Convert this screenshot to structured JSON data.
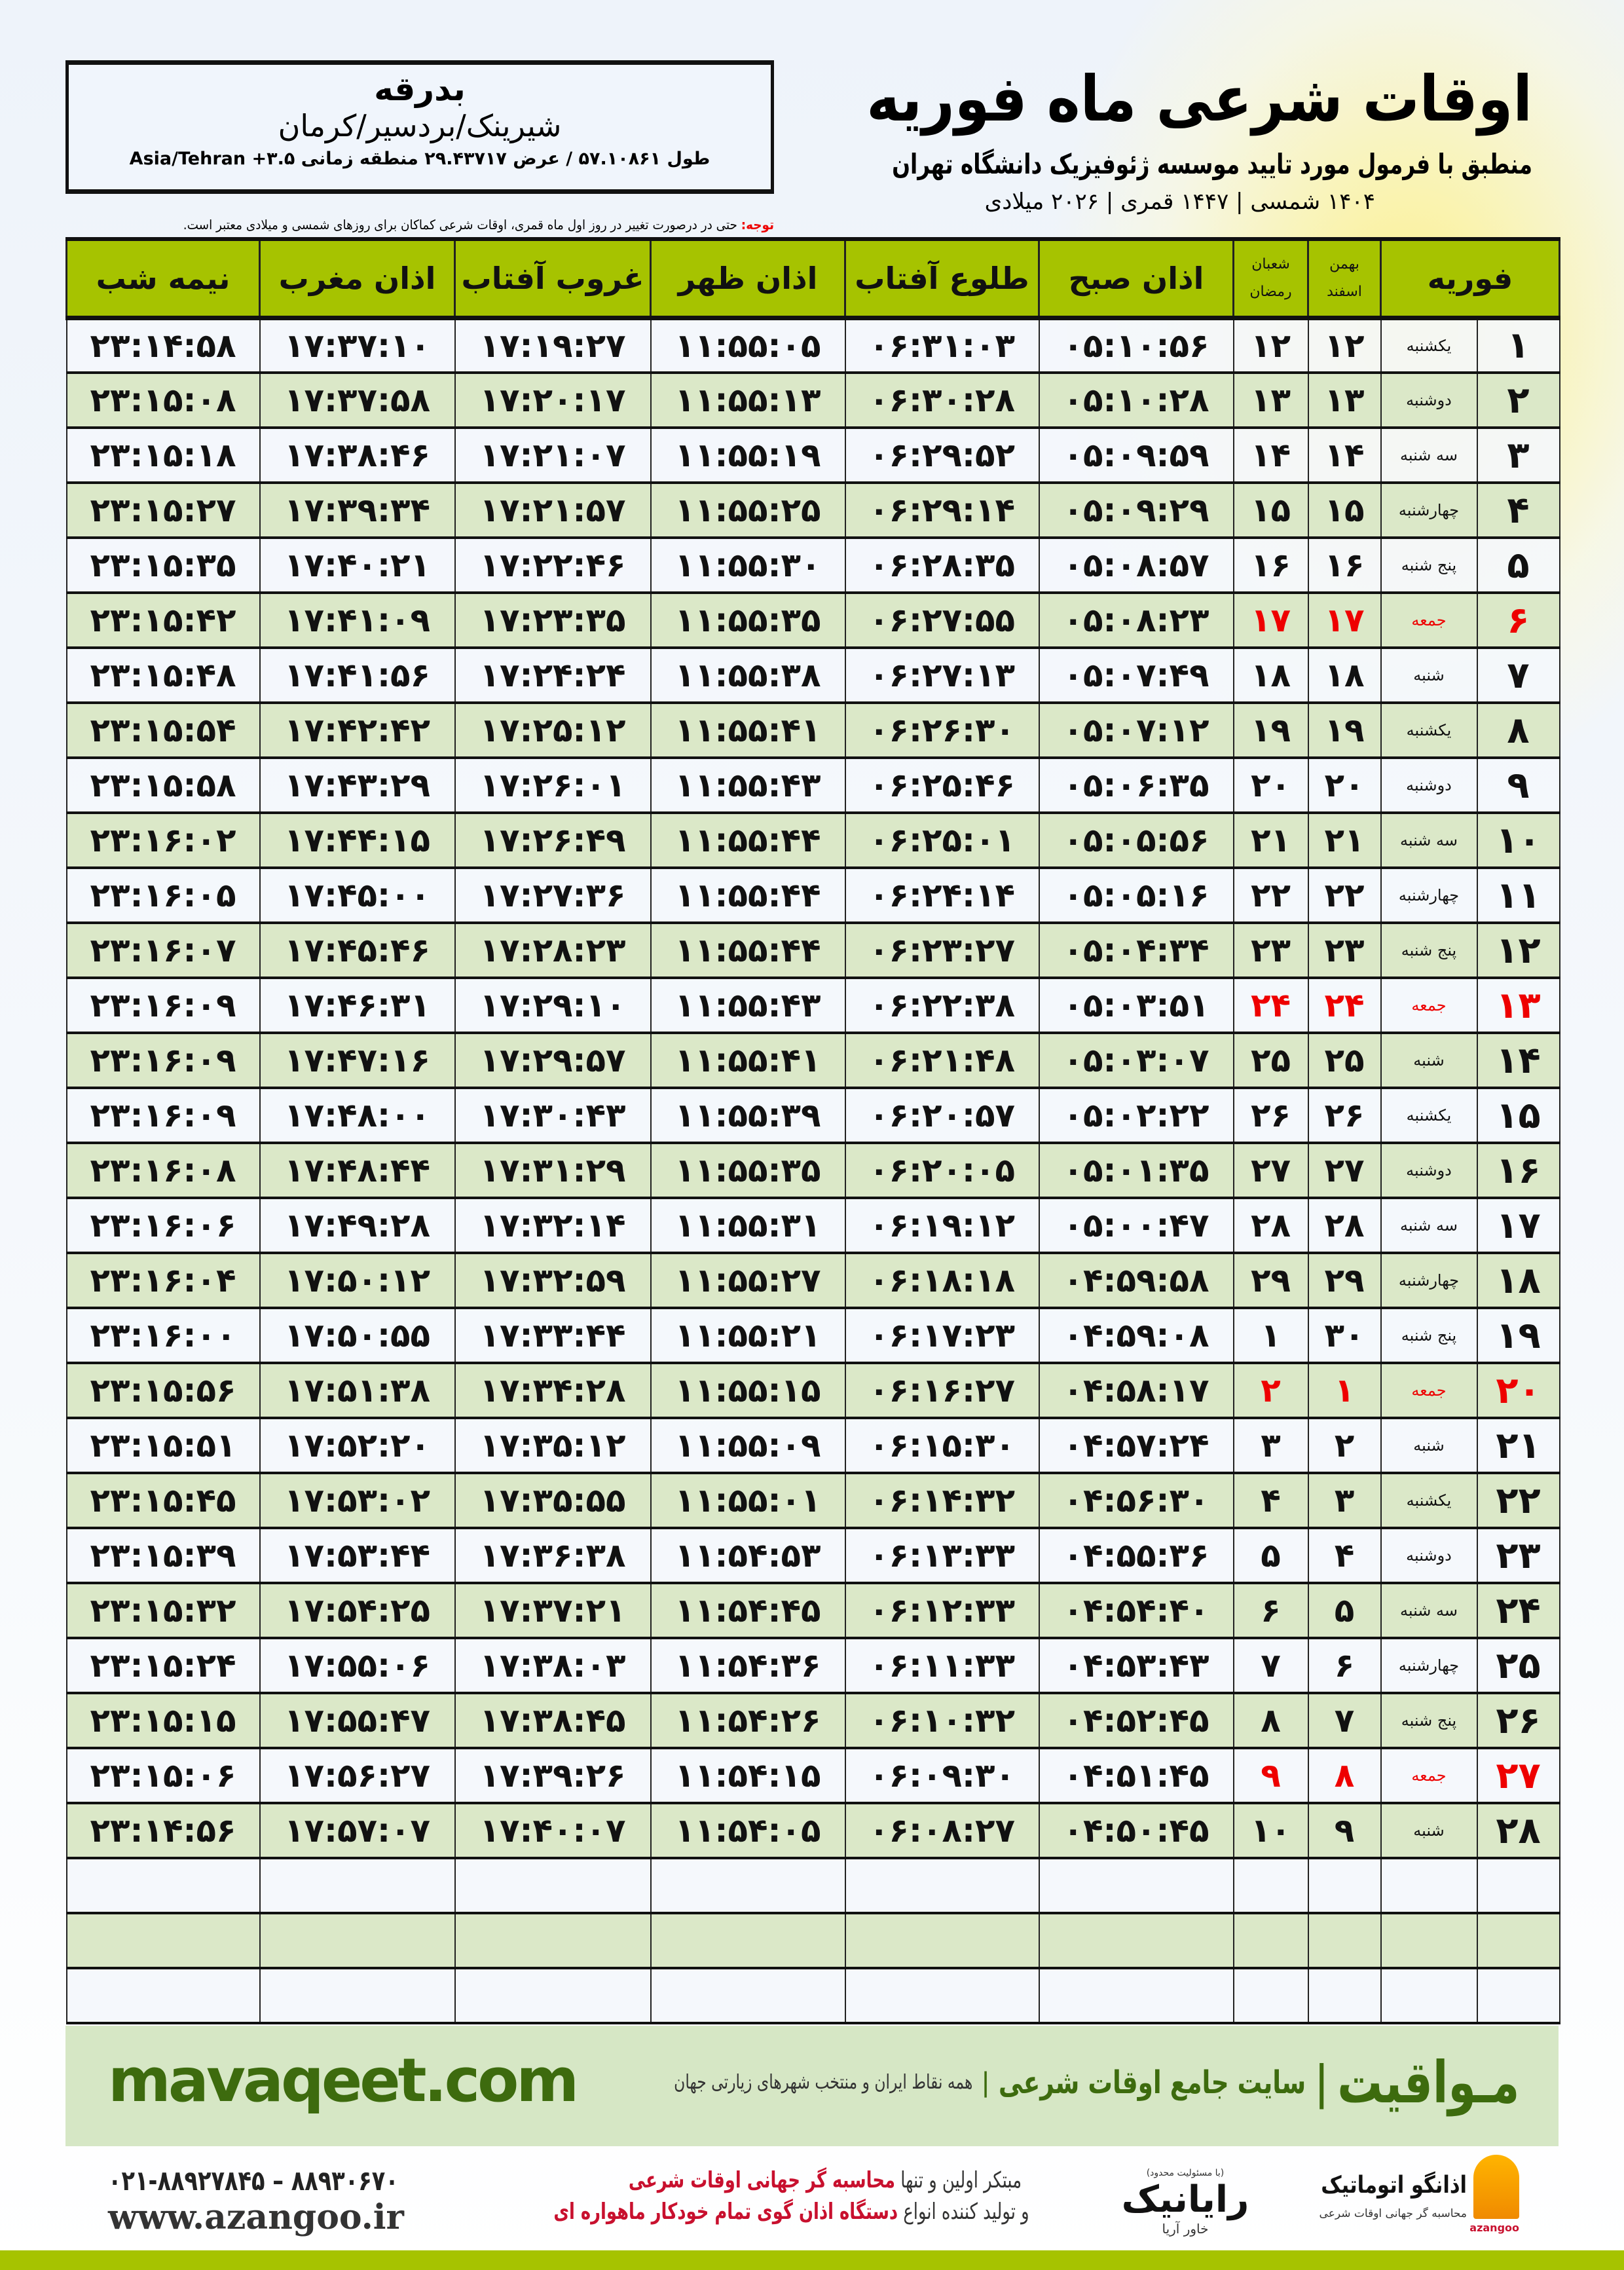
{
  "location": {
    "city": "بدرقه",
    "region": "شیرینک/بردسیر/کرمان",
    "coords": "طول ۵۷.۱۰۸۶۱ / عرض ۲۹.۴۳۷۱۷ منطقه زمانی ۳.۵+ Asia/Tehran"
  },
  "header": {
    "title": "اوقات شرعی ماه فوریه",
    "subtitle": "منطبق با فرمول مورد تایید موسسه ژئوفیزیک دانشگاه تهران",
    "years": "۱۴۰۴ شمسی | ۱۴۴۷ قمری | ۲۰۲۶ میلادی"
  },
  "note": {
    "label": "توجه:",
    "text": " حتی در درصورت تغییر در روز اول ماه قمری، اوقات شرعی کماکان برای روزهای شمسی و میلادی معتبر است."
  },
  "colors": {
    "header_green": "#a6c300",
    "row_green": "#dbe8c8",
    "friday_red": "#e00000",
    "brand_green": "#3d6b0e"
  },
  "table": {
    "columns": {
      "month": "فوریه",
      "shamsi_top": "بهمن",
      "shamsi_bottom": "اسفند",
      "qamari_top": "شعبان",
      "qamari_bottom": "رمضان",
      "fajr": "اذان صبح",
      "sunrise": "طلوع آفتاب",
      "dhuhr": "اذان ظهر",
      "sunset": "غروب آفتاب",
      "maghrib": "اذان مغرب",
      "midnight": "نیمه شب"
    },
    "rows": [
      [
        "۱",
        "یکشنبه",
        "۱۲",
        "۱۲",
        "۰۵:۱۰:۵۶",
        "۰۶:۳۱:۰۳",
        "۱۱:۵۵:۰۵",
        "۱۷:۱۹:۲۷",
        "۱۷:۳۷:۱۰",
        "۲۳:۱۴:۵۸"
      ],
      [
        "۲",
        "دوشنبه",
        "۱۳",
        "۱۳",
        "۰۵:۱۰:۲۸",
        "۰۶:۳۰:۲۸",
        "۱۱:۵۵:۱۳",
        "۱۷:۲۰:۱۷",
        "۱۷:۳۷:۵۸",
        "۲۳:۱۵:۰۸"
      ],
      [
        "۳",
        "سه شنبه",
        "۱۴",
        "۱۴",
        "۰۵:۰۹:۵۹",
        "۰۶:۲۹:۵۲",
        "۱۱:۵۵:۱۹",
        "۱۷:۲۱:۰۷",
        "۱۷:۳۸:۴۶",
        "۲۳:۱۵:۱۸"
      ],
      [
        "۴",
        "چهارشنبه",
        "۱۵",
        "۱۵",
        "۰۵:۰۹:۲۹",
        "۰۶:۲۹:۱۴",
        "۱۱:۵۵:۲۵",
        "۱۷:۲۱:۵۷",
        "۱۷:۳۹:۳۴",
        "۲۳:۱۵:۲۷"
      ],
      [
        "۵",
        "پنج شنبه",
        "۱۶",
        "۱۶",
        "۰۵:۰۸:۵۷",
        "۰۶:۲۸:۳۵",
        "۱۱:۵۵:۳۰",
        "۱۷:۲۲:۴۶",
        "۱۷:۴۰:۲۱",
        "۲۳:۱۵:۳۵"
      ],
      [
        "۶",
        "جمعه",
        "۱۷",
        "۱۷",
        "۰۵:۰۸:۲۳",
        "۰۶:۲۷:۵۵",
        "۱۱:۵۵:۳۵",
        "۱۷:۲۳:۳۵",
        "۱۷:۴۱:۰۹",
        "۲۳:۱۵:۴۲"
      ],
      [
        "۷",
        "شنبه",
        "۱۸",
        "۱۸",
        "۰۵:۰۷:۴۹",
        "۰۶:۲۷:۱۳",
        "۱۱:۵۵:۳۸",
        "۱۷:۲۴:۲۴",
        "۱۷:۴۱:۵۶",
        "۲۳:۱۵:۴۸"
      ],
      [
        "۸",
        "یکشنبه",
        "۱۹",
        "۱۹",
        "۰۵:۰۷:۱۲",
        "۰۶:۲۶:۳۰",
        "۱۱:۵۵:۴۱",
        "۱۷:۲۵:۱۲",
        "۱۷:۴۲:۴۲",
        "۲۳:۱۵:۵۴"
      ],
      [
        "۹",
        "دوشنبه",
        "۲۰",
        "۲۰",
        "۰۵:۰۶:۳۵",
        "۰۶:۲۵:۴۶",
        "۱۱:۵۵:۴۳",
        "۱۷:۲۶:۰۱",
        "۱۷:۴۳:۲۹",
        "۲۳:۱۵:۵۸"
      ],
      [
        "۱۰",
        "سه شنبه",
        "۲۱",
        "۲۱",
        "۰۵:۰۵:۵۶",
        "۰۶:۲۵:۰۱",
        "۱۱:۵۵:۴۴",
        "۱۷:۲۶:۴۹",
        "۱۷:۴۴:۱۵",
        "۲۳:۱۶:۰۲"
      ],
      [
        "۱۱",
        "چهارشنبه",
        "۲۲",
        "۲۲",
        "۰۵:۰۵:۱۶",
        "۰۶:۲۴:۱۴",
        "۱۱:۵۵:۴۴",
        "۱۷:۲۷:۳۶",
        "۱۷:۴۵:۰۰",
        "۲۳:۱۶:۰۵"
      ],
      [
        "۱۲",
        "پنج شنبه",
        "۲۳",
        "۲۳",
        "۰۵:۰۴:۳۴",
        "۰۶:۲۳:۲۷",
        "۱۱:۵۵:۴۴",
        "۱۷:۲۸:۲۳",
        "۱۷:۴۵:۴۶",
        "۲۳:۱۶:۰۷"
      ],
      [
        "۱۳",
        "جمعه",
        "۲۴",
        "۲۴",
        "۰۵:۰۳:۵۱",
        "۰۶:۲۲:۳۸",
        "۱۱:۵۵:۴۳",
        "۱۷:۲۹:۱۰",
        "۱۷:۴۶:۳۱",
        "۲۳:۱۶:۰۹"
      ],
      [
        "۱۴",
        "شنبه",
        "۲۵",
        "۲۵",
        "۰۵:۰۳:۰۷",
        "۰۶:۲۱:۴۸",
        "۱۱:۵۵:۴۱",
        "۱۷:۲۹:۵۷",
        "۱۷:۴۷:۱۶",
        "۲۳:۱۶:۰۹"
      ],
      [
        "۱۵",
        "یکشنبه",
        "۲۶",
        "۲۶",
        "۰۵:۰۲:۲۲",
        "۰۶:۲۰:۵۷",
        "۱۱:۵۵:۳۹",
        "۱۷:۳۰:۴۳",
        "۱۷:۴۸:۰۰",
        "۲۳:۱۶:۰۹"
      ],
      [
        "۱۶",
        "دوشنبه",
        "۲۷",
        "۲۷",
        "۰۵:۰۱:۳۵",
        "۰۶:۲۰:۰۵",
        "۱۱:۵۵:۳۵",
        "۱۷:۳۱:۲۹",
        "۱۷:۴۸:۴۴",
        "۲۳:۱۶:۰۸"
      ],
      [
        "۱۷",
        "سه شنبه",
        "۲۸",
        "۲۸",
        "۰۵:۰۰:۴۷",
        "۰۶:۱۹:۱۲",
        "۱۱:۵۵:۳۱",
        "۱۷:۳۲:۱۴",
        "۱۷:۴۹:۲۸",
        "۲۳:۱۶:۰۶"
      ],
      [
        "۱۸",
        "چهارشنبه",
        "۲۹",
        "۲۹",
        "۰۴:۵۹:۵۸",
        "۰۶:۱۸:۱۸",
        "۱۱:۵۵:۲۷",
        "۱۷:۳۲:۵۹",
        "۱۷:۵۰:۱۲",
        "۲۳:۱۶:۰۴"
      ],
      [
        "۱۹",
        "پنج شنبه",
        "۳۰",
        "۱",
        "۰۴:۵۹:۰۸",
        "۰۶:۱۷:۲۳",
        "۱۱:۵۵:۲۱",
        "۱۷:۳۳:۴۴",
        "۱۷:۵۰:۵۵",
        "۲۳:۱۶:۰۰"
      ],
      [
        "۲۰",
        "جمعه",
        "۱",
        "۲",
        "۰۴:۵۸:۱۷",
        "۰۶:۱۶:۲۷",
        "۱۱:۵۵:۱۵",
        "۱۷:۳۴:۲۸",
        "۱۷:۵۱:۳۸",
        "۲۳:۱۵:۵۶"
      ],
      [
        "۲۱",
        "شنبه",
        "۲",
        "۳",
        "۰۴:۵۷:۲۴",
        "۰۶:۱۵:۳۰",
        "۱۱:۵۵:۰۹",
        "۱۷:۳۵:۱۲",
        "۱۷:۵۲:۲۰",
        "۲۳:۱۵:۵۱"
      ],
      [
        "۲۲",
        "یکشنبه",
        "۳",
        "۴",
        "۰۴:۵۶:۳۰",
        "۰۶:۱۴:۳۲",
        "۱۱:۵۵:۰۱",
        "۱۷:۳۵:۵۵",
        "۱۷:۵۳:۰۲",
        "۲۳:۱۵:۴۵"
      ],
      [
        "۲۳",
        "دوشنبه",
        "۴",
        "۵",
        "۰۴:۵۵:۳۶",
        "۰۶:۱۳:۳۳",
        "۱۱:۵۴:۵۳",
        "۱۷:۳۶:۳۸",
        "۱۷:۵۳:۴۴",
        "۲۳:۱۵:۳۹"
      ],
      [
        "۲۴",
        "سه شنبه",
        "۵",
        "۶",
        "۰۴:۵۴:۴۰",
        "۰۶:۱۲:۳۳",
        "۱۱:۵۴:۴۵",
        "۱۷:۳۷:۲۱",
        "۱۷:۵۴:۲۵",
        "۲۳:۱۵:۳۲"
      ],
      [
        "۲۵",
        "چهارشنبه",
        "۶",
        "۷",
        "۰۴:۵۳:۴۳",
        "۰۶:۱۱:۳۳",
        "۱۱:۵۴:۳۶",
        "۱۷:۳۸:۰۳",
        "۱۷:۵۵:۰۶",
        "۲۳:۱۵:۲۴"
      ],
      [
        "۲۶",
        "پنج شنبه",
        "۷",
        "۸",
        "۰۴:۵۲:۴۵",
        "۰۶:۱۰:۳۲",
        "۱۱:۵۴:۲۶",
        "۱۷:۳۸:۴۵",
        "۱۷:۵۵:۴۷",
        "۲۳:۱۵:۱۵"
      ],
      [
        "۲۷",
        "جمعه",
        "۸",
        "۹",
        "۰۴:۵۱:۴۵",
        "۰۶:۰۹:۳۰",
        "۱۱:۵۴:۱۵",
        "۱۷:۳۹:۲۶",
        "۱۷:۵۶:۲۷",
        "۲۳:۱۵:۰۶"
      ],
      [
        "۲۸",
        "شنبه",
        "۹",
        "۱۰",
        "۰۴:۵۰:۴۵",
        "۰۶:۰۸:۲۷",
        "۱۱:۵۴:۰۵",
        "۱۷:۴۰:۰۷",
        "۱۷:۵۷:۰۷",
        "۲۳:۱۴:۵۶"
      ]
    ]
  },
  "band": {
    "site": "mavaqeet.com",
    "brand": "مـواقیت",
    "tagline": "سایت جامع اوقات شرعی",
    "tagline2": "همه نقاط ایران و منتخب شهرهای زیارتی جهان"
  },
  "footer": {
    "phones": "۰۲۱-۸۸۹۲۷۸۴۵ – ۸۸۹۳۰۶۷۰",
    "website": "www.azangoo.ir",
    "promo1_a": "مبتکر اولین و تنها ",
    "promo1_b": "محاسبه گر جهانی اوقات شرعی",
    "promo2_a": "و تولید کننده انواع ",
    "promo2_b": "دستگاه اذان گوی تمام خودکار ماهواره ای",
    "rayanik_small": "(با مسئولیت محدود)",
    "rayanik_name": "رایانیک",
    "rayanik_sub": "خاور آریا",
    "azangoo_name": "اذانگو اتوماتیک",
    "azangoo_sub": "محاسبه گر جهانی اوقات شرعی",
    "azangoo_latin": "azangoo"
  }
}
